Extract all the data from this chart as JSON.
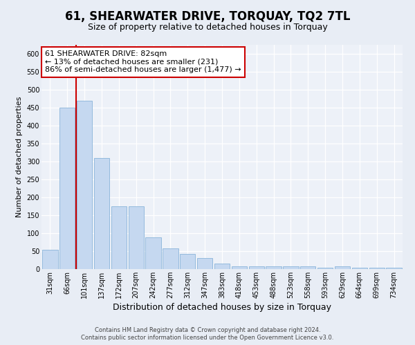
{
  "title": "61, SHEARWATER DRIVE, TORQUAY, TQ2 7TL",
  "subtitle": "Size of property relative to detached houses in Torquay",
  "xlabel": "Distribution of detached houses by size in Torquay",
  "ylabel": "Number of detached properties",
  "categories": [
    "31sqm",
    "66sqm",
    "101sqm",
    "137sqm",
    "172sqm",
    "207sqm",
    "242sqm",
    "277sqm",
    "312sqm",
    "347sqm",
    "383sqm",
    "418sqm",
    "453sqm",
    "488sqm",
    "523sqm",
    "558sqm",
    "593sqm",
    "629sqm",
    "664sqm",
    "699sqm",
    "734sqm"
  ],
  "bar_values": [
    53,
    450,
    470,
    310,
    175,
    175,
    88,
    58,
    42,
    30,
    15,
    8,
    8,
    8,
    8,
    8,
    3,
    8,
    3,
    3,
    3
  ],
  "bar_color": "#C5D8F0",
  "bar_edge_color": "#89B4D9",
  "vline_x": 1.5,
  "vline_color": "#CC0000",
  "annotation_line1": "61 SHEARWATER DRIVE: 82sqm",
  "annotation_line2": "← 13% of detached houses are smaller (231)",
  "annotation_line3": "86% of semi-detached houses are larger (1,477) →",
  "annotation_box_facecolor": "white",
  "annotation_box_edgecolor": "#CC0000",
  "ylim": [
    0,
    625
  ],
  "yticks": [
    0,
    50,
    100,
    150,
    200,
    250,
    300,
    350,
    400,
    450,
    500,
    550,
    600
  ],
  "footer1": "Contains HM Land Registry data © Crown copyright and database right 2024.",
  "footer2": "Contains public sector information licensed under the Open Government Licence v3.0.",
  "fig_facecolor": "#E8EDF5",
  "plot_facecolor": "#EDF1F8",
  "title_fontsize": 12,
  "subtitle_fontsize": 9,
  "ylabel_fontsize": 8,
  "xlabel_fontsize": 9,
  "tick_fontsize": 7,
  "annotation_fontsize": 8,
  "footer_fontsize": 6
}
